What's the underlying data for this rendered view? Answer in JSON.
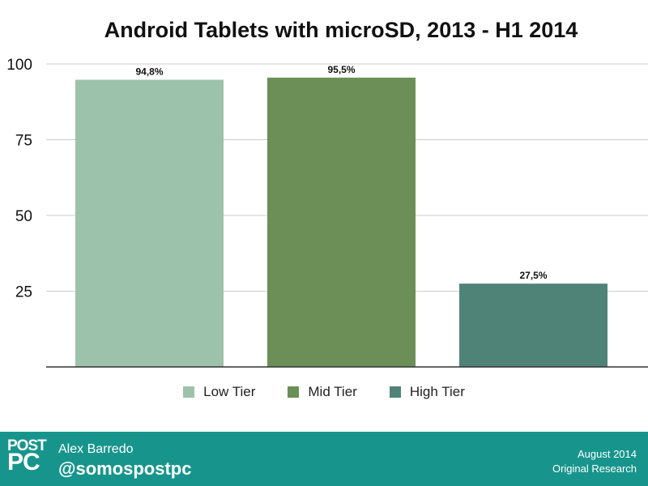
{
  "chart_data": {
    "type": "bar",
    "title": "Android Tablets with microSD, 2013 - H1 2014",
    "categories": [
      "Low Tier",
      "Mid Tier",
      "High Tier"
    ],
    "values": [
      94.8,
      95.5,
      27.5
    ],
    "value_labels": [
      "94,8%",
      "95,5%",
      "27,5%"
    ],
    "colors": [
      "#9dc2ab",
      "#6b8f57",
      "#4f8378"
    ],
    "yticks": [
      "100",
      "75",
      "50",
      "25"
    ],
    "ytick_values": [
      100,
      75,
      50,
      25
    ],
    "ylim": [
      0,
      100
    ],
    "xlabel": "",
    "ylabel": "",
    "grid": true,
    "legend_position": "bottom"
  },
  "colors": {
    "footer_bg": "#17958c",
    "gridline": "#cccccc",
    "axis": "#333333"
  },
  "footer": {
    "logo_line1": "POST",
    "logo_line2": "PC",
    "author": "Alex Barredo",
    "handle": "@somospostpc",
    "date": "August 2014",
    "note": "Original Research"
  }
}
